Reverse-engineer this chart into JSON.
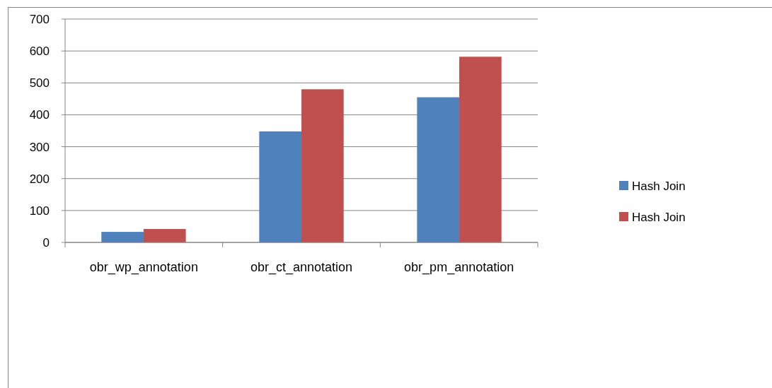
{
  "chart_data": {
    "type": "bar",
    "categories": [
      "obr_wp_annotation",
      "obr_ct_annotation",
      "obr_pm_annotation"
    ],
    "series": [
      {
        "name": "Hash Join",
        "color": "#4f81bd",
        "values": [
          33,
          348,
          455
        ]
      },
      {
        "name": "Hash Join",
        "color": "#c0504d",
        "values": [
          42,
          480,
          582
        ]
      }
    ],
    "ylim": [
      0,
      700
    ],
    "yticks": [
      0,
      100,
      200,
      300,
      400,
      500,
      600,
      700
    ],
    "grid": "y",
    "legend": "right"
  }
}
